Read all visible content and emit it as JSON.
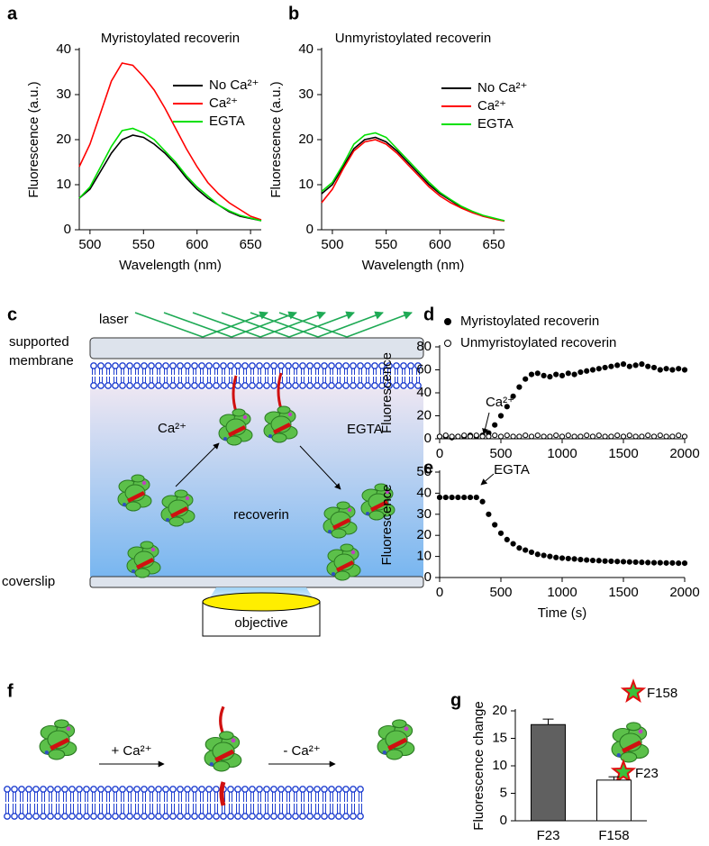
{
  "panel_labels": [
    "a",
    "b",
    "c",
    "d",
    "e",
    "f",
    "g"
  ],
  "diagram_c": {
    "laser": "laser",
    "supported": "supported",
    "membrane": "membrane",
    "ca": "Ca²⁺",
    "egta": "EGTA",
    "recoverin": "recoverin",
    "coverslip": "coverslip",
    "objective": "objective"
  },
  "diagram_f": {
    "add_ca": "+ Ca²⁺",
    "remove_ca": "- Ca²⁺"
  },
  "chart_data": [
    {
      "type": "line",
      "title": "Myristoylated recoverin",
      "xlabel": "Wavelength (nm)",
      "ylabel": "Fluorescence (a.u.)",
      "x": [
        490,
        500,
        510,
        520,
        530,
        540,
        550,
        560,
        570,
        580,
        590,
        600,
        610,
        620,
        630,
        640,
        650,
        660
      ],
      "series": [
        {
          "name": "No Ca²⁺",
          "color": "#000000",
          "values": [
            7,
            9,
            13,
            17,
            20,
            21,
            20.5,
            19,
            17,
            14.5,
            11.5,
            9,
            7,
            5.5,
            4,
            3,
            2.5,
            2
          ]
        },
        {
          "name": "Ca²⁺",
          "color": "#ff0000",
          "values": [
            14,
            19,
            26,
            33,
            37,
            36.5,
            34,
            31,
            27,
            22.5,
            18,
            14,
            10.5,
            8,
            6,
            4.5,
            3,
            2.2
          ]
        },
        {
          "name": "EGTA",
          "color": "#00e000",
          "values": [
            7,
            9.5,
            14,
            18.5,
            22,
            22.5,
            21.5,
            20,
            17.5,
            15,
            12,
            9.5,
            7.5,
            5.5,
            4.2,
            3.2,
            2.6,
            2
          ]
        }
      ],
      "xlim": [
        490,
        660
      ],
      "xticks": [
        500,
        550,
        600,
        650
      ],
      "ylim": [
        0,
        40
      ],
      "yticks": [
        0,
        10,
        20,
        30,
        40
      ],
      "legend": "upper right"
    },
    {
      "type": "line",
      "title": "Unmyristoylated recoverin",
      "xlabel": "Wavelength (nm)",
      "ylabel": "Fluorescence (a.u.)",
      "x": [
        490,
        500,
        510,
        520,
        530,
        540,
        550,
        560,
        570,
        580,
        590,
        600,
        610,
        620,
        630,
        640,
        650,
        660
      ],
      "series": [
        {
          "name": "No Ca²⁺",
          "color": "#000000",
          "values": [
            8,
            10,
            14,
            18,
            20,
            20.5,
            19.5,
            17.5,
            15,
            12.5,
            10,
            8,
            6.5,
            5,
            4,
            3,
            2.5,
            2
          ]
        },
        {
          "name": "Ca²⁺",
          "color": "#ff0000",
          "values": [
            6,
            9,
            13.5,
            17.5,
            19.5,
            20,
            19,
            17,
            14.5,
            12,
            9.5,
            7.5,
            6,
            4.8,
            3.8,
            3,
            2.4,
            1.9
          ]
        },
        {
          "name": "EGTA",
          "color": "#00e000",
          "values": [
            8.5,
            10.5,
            14.5,
            19,
            21,
            21.5,
            20.5,
            18,
            15.5,
            13,
            10.5,
            8.3,
            6.7,
            5.2,
            4.1,
            3.2,
            2.6,
            2
          ]
        }
      ],
      "xlim": [
        490,
        660
      ],
      "xticks": [
        500,
        550,
        600,
        650
      ],
      "ylim": [
        0,
        40
      ],
      "yticks": [
        0,
        10,
        20,
        30,
        40
      ],
      "legend": "upper right"
    },
    {
      "type": "scatter",
      "ylabel": "Fluorescence",
      "annotations": [
        "Ca²⁺"
      ],
      "x": [
        0,
        50,
        100,
        150,
        200,
        250,
        300,
        350,
        400,
        450,
        500,
        550,
        600,
        650,
        700,
        750,
        800,
        850,
        900,
        950,
        1000,
        1050,
        1100,
        1150,
        1200,
        1250,
        1300,
        1350,
        1400,
        1450,
        1500,
        1550,
        1600,
        1650,
        1700,
        1750,
        1800,
        1850,
        1900,
        1950,
        2000
      ],
      "series": [
        {
          "name": "Myristoylated recoverin",
          "color": "#000000",
          "marker": "filled",
          "values": [
            2,
            2,
            1,
            2,
            2,
            3,
            2,
            3,
            5,
            12,
            20,
            28,
            37,
            45,
            52,
            56,
            57,
            55,
            54,
            56,
            55,
            57,
            56,
            58,
            59,
            60,
            61,
            62,
            63,
            64,
            65,
            63,
            64,
            65,
            63,
            62,
            60,
            61,
            60,
            61,
            60
          ]
        },
        {
          "name": "Unmyristoylated recoverin",
          "color": "#000000",
          "marker": "open",
          "values": [
            2,
            3,
            2,
            2,
            3,
            2,
            3,
            2,
            2,
            3,
            2,
            3,
            2,
            2,
            3,
            2,
            3,
            2,
            2,
            3,
            2,
            3,
            2,
            2,
            3,
            2,
            3,
            2,
            2,
            3,
            2,
            3,
            2,
            2,
            3,
            2,
            3,
            2,
            2,
            3,
            2
          ]
        }
      ],
      "xlim": [
        0,
        2000
      ],
      "xticks": [
        0,
        500,
        1000,
        1500,
        2000
      ],
      "ylim": [
        0,
        80
      ],
      "yticks": [
        0,
        20,
        40,
        60,
        80
      ],
      "legend": "top"
    },
    {
      "type": "scatter",
      "xlabel": "Time (s)",
      "ylabel": "Fluorescence",
      "annotations": [
        "EGTA"
      ],
      "x": [
        0,
        50,
        100,
        150,
        200,
        250,
        300,
        350,
        400,
        450,
        500,
        550,
        600,
        650,
        700,
        750,
        800,
        850,
        900,
        950,
        1000,
        1050,
        1100,
        1150,
        1200,
        1250,
        1300,
        1350,
        1400,
        1450,
        1500,
        1550,
        1600,
        1650,
        1700,
        1750,
        1800,
        1850,
        1900,
        1950,
        2000
      ],
      "series": [
        {
          "color": "#000000",
          "marker": "filled",
          "values": [
            38,
            38,
            38,
            38,
            38,
            38,
            38,
            36,
            30,
            25,
            21,
            18,
            16,
            14,
            13,
            12,
            11,
            10.5,
            10,
            9.5,
            9.2,
            9,
            8.8,
            8.5,
            8.3,
            8.1,
            8,
            7.8,
            7.7,
            7.6,
            7.5,
            7.4,
            7.3,
            7.2,
            7.1,
            7,
            7,
            6.9,
            6.9,
            6.8,
            6.8
          ]
        }
      ],
      "xlim": [
        0,
        2000
      ],
      "xticks": [
        0,
        500,
        1000,
        1500,
        2000
      ],
      "ylim": [
        0,
        50
      ],
      "yticks": [
        0,
        10,
        20,
        30,
        40,
        50
      ]
    },
    {
      "type": "bar",
      "ylabel": "Fluorescence change",
      "annotations": [
        "F158",
        "F23"
      ],
      "categories": [
        "F23",
        "F158"
      ],
      "values": [
        17.5,
        7.4
      ],
      "errors": [
        1.0,
        0.6
      ],
      "colors": [
        "#606060",
        "#ffffff"
      ],
      "ylim": [
        0,
        20
      ],
      "yticks": [
        0,
        5,
        10,
        15,
        20
      ]
    }
  ]
}
